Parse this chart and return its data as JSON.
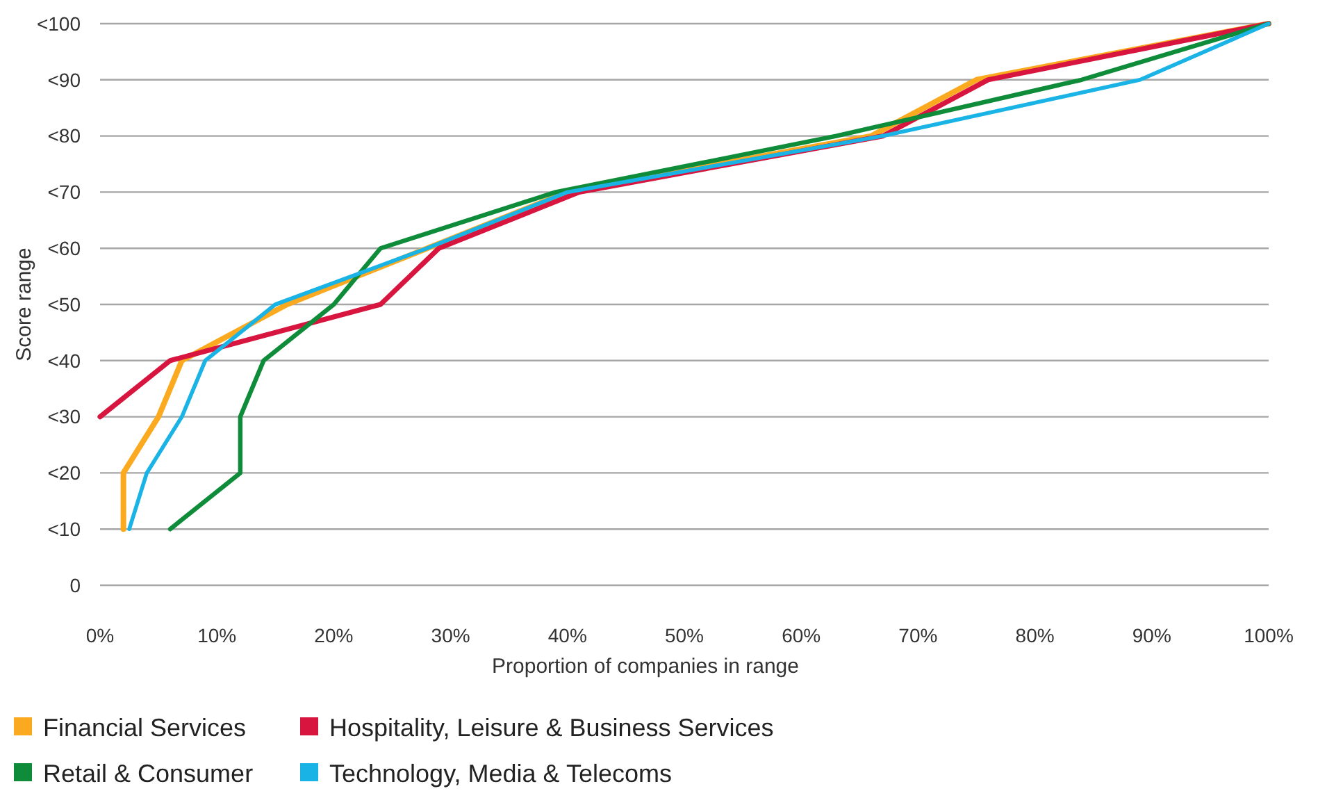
{
  "chart_data": {
    "type": "line",
    "orientation": "horizontal",
    "xlabel": "Proportion of companies in range",
    "ylabel": "Score range",
    "categories": [
      "<100",
      "<90",
      "<80",
      "<70",
      "<60",
      "<50",
      "<40",
      "<30",
      "<20",
      "<10",
      "0"
    ],
    "xlim": [
      0,
      100
    ],
    "xticks": [
      {
        "value": 0,
        "label": "0%"
      },
      {
        "value": 10,
        "label": "10%"
      },
      {
        "value": 20,
        "label": "20%"
      },
      {
        "value": 30,
        "label": "30%"
      },
      {
        "value": 40,
        "label": "40%"
      },
      {
        "value": 50,
        "label": "50%"
      },
      {
        "value": 60,
        "label": "60%"
      },
      {
        "value": 70,
        "label": "70%"
      },
      {
        "value": 80,
        "label": "80%"
      },
      {
        "value": 90,
        "label": "90%"
      },
      {
        "value": 100,
        "label": "100%"
      }
    ],
    "grid": "y",
    "legend": "bottom",
    "marker": "none",
    "line_style": "solid",
    "series": [
      {
        "name": "Financial Services",
        "color": "#fbaa1f",
        "values": [
          100,
          75,
          66,
          40,
          28,
          16,
          7,
          5,
          2,
          2,
          null
        ]
      },
      {
        "name": "Hospitality, Leisure & Business Services",
        "color": "#d7153f",
        "values": [
          100,
          76,
          67,
          41,
          29,
          24,
          6,
          0,
          null,
          null,
          null
        ]
      },
      {
        "name": "Retail & Consumer",
        "color": "#0e8c3a",
        "values": [
          100,
          84,
          63,
          39,
          24,
          20,
          14,
          12,
          12,
          6,
          null
        ]
      },
      {
        "name": "Technology, Media & Telecoms",
        "color": "#19b3e6",
        "values": [
          100,
          89,
          67,
          40,
          28,
          15,
          9,
          7,
          4,
          2.5,
          null
        ]
      }
    ]
  }
}
